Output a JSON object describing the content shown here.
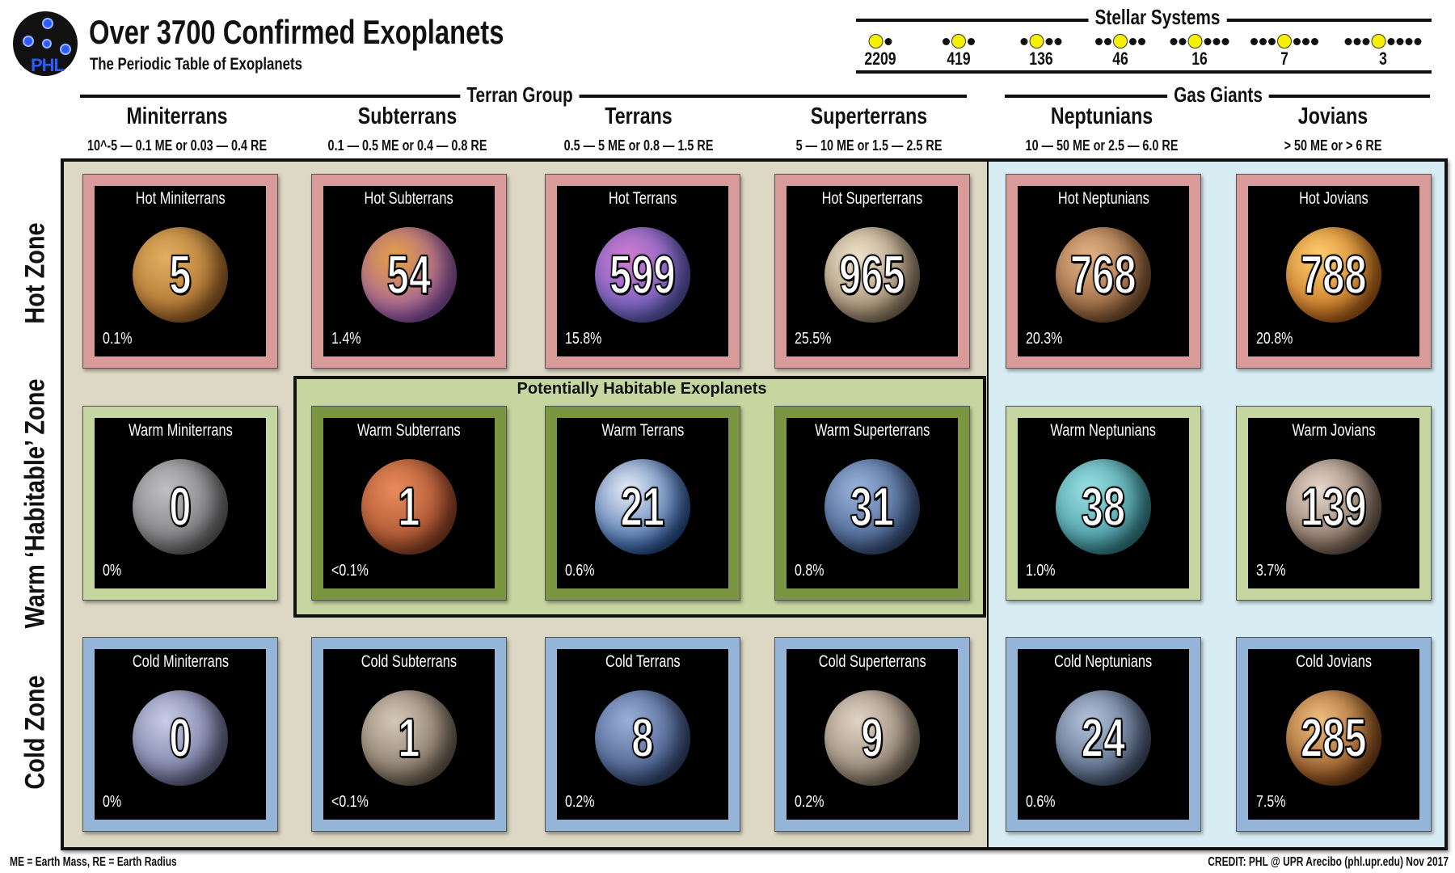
{
  "header": {
    "title": "Over 3700 Confirmed Exoplanets",
    "subtitle": "The Periodic Table of Exoplanets",
    "logo_text": "PHL"
  },
  "stellar_systems": {
    "label": "Stellar Systems",
    "items": [
      {
        "count": "2209",
        "before": 0,
        "after": 1
      },
      {
        "count": "419",
        "before": 1,
        "after": 1
      },
      {
        "count": "136",
        "before": 1,
        "after": 2
      },
      {
        "count": "46",
        "before": 2,
        "after": 2
      },
      {
        "count": "16",
        "before": 2,
        "after": 3
      },
      {
        "count": "7",
        "before": 3,
        "after": 3
      },
      {
        "count": "3",
        "before": 3,
        "after": 4
      }
    ]
  },
  "groups": {
    "terran": "Terran Group",
    "gas": "Gas Giants"
  },
  "categories": [
    {
      "name": "Miniterrans",
      "range_html": "10<sup>−5</sup> — 0.1 M<sub>E</sub> or 0.03 — 0.4 R<sub>E</sub>",
      "range": "10^-5 — 0.1 ME or 0.03 — 0.4 RE"
    },
    {
      "name": "Subterrans",
      "range": "0.1 — 0.5 ME or 0.4 — 0.8 RE"
    },
    {
      "name": "Terrans",
      "range": "0.5 — 5 ME or 0.8 — 1.5 RE"
    },
    {
      "name": "Superterrans",
      "range": "5 — 10 ME or 1.5 — 2.5 RE"
    },
    {
      "name": "Neptunians",
      "range": "10 — 50 ME or 2.5 — 6.0 RE"
    },
    {
      "name": "Jovians",
      "range": "> 50 ME or > 6 RE"
    }
  ],
  "zones": [
    "Hot Zone",
    "Warm ‘Habitable’ Zone",
    "Cold Zone"
  ],
  "habitable_label": "Potentially Habitable Exoplanets",
  "cells": [
    [
      {
        "name": "Hot Miniterrans",
        "count": "5",
        "pct": "0.1%",
        "planet": [
          "#e0b060",
          "#a86a2a"
        ]
      },
      {
        "name": "Hot Subterrans",
        "count": "54",
        "pct": "1.4%",
        "planet": [
          "#e6a040",
          "#9a5ab8"
        ]
      },
      {
        "name": "Hot Terrans",
        "count": "599",
        "pct": "15.8%",
        "planet": [
          "#d27ad0",
          "#6060c0"
        ]
      },
      {
        "name": "Hot Superterrans",
        "count": "965",
        "pct": "25.5%",
        "planet": [
          "#f0e4cc",
          "#9a8468"
        ]
      },
      {
        "name": "Hot Neptunians",
        "count": "768",
        "pct": "20.3%",
        "planet": [
          "#e6b488",
          "#8a5a34"
        ]
      },
      {
        "name": "Hot Jovians",
        "count": "788",
        "pct": "20.8%",
        "planet": [
          "#ffd070",
          "#c06818"
        ]
      }
    ],
    [
      {
        "name": "Warm Miniterrans",
        "count": "0",
        "pct": "0%",
        "planet": [
          "#c0c0c2",
          "#707072"
        ]
      },
      {
        "name": "Warm Subterrans",
        "count": "1",
        "pct": "<0.1%",
        "planet": [
          "#e88a5c",
          "#a04a28"
        ]
      },
      {
        "name": "Warm Terrans",
        "count": "21",
        "pct": "0.6%",
        "planet": [
          "#e8eef8",
          "#2c5aa0"
        ]
      },
      {
        "name": "Warm Superterrans",
        "count": "31",
        "pct": "0.8%",
        "planet": [
          "#9ab4dc",
          "#3a5484"
        ]
      },
      {
        "name": "Warm Neptunians",
        "count": "38",
        "pct": "1.0%",
        "planet": [
          "#9ae0e4",
          "#3a9098"
        ]
      },
      {
        "name": "Warm Jovians",
        "count": "139",
        "pct": "3.7%",
        "planet": [
          "#e8d8cc",
          "#7a6454"
        ]
      }
    ],
    [
      {
        "name": "Cold Miniterrans",
        "count": "0",
        "pct": "0%",
        "planet": [
          "#c8cce8",
          "#6a6e94"
        ]
      },
      {
        "name": "Cold Subterrans",
        "count": "1",
        "pct": "<0.1%",
        "planet": [
          "#d4c8b8",
          "#7a6a5a"
        ]
      },
      {
        "name": "Cold Terrans",
        "count": "8",
        "pct": "0.2%",
        "planet": [
          "#9ab0d8",
          "#3a5080"
        ]
      },
      {
        "name": "Cold Superterrans",
        "count": "9",
        "pct": "0.2%",
        "planet": [
          "#e0d4c4",
          "#8a7a68"
        ]
      },
      {
        "name": "Cold Neptunians",
        "count": "24",
        "pct": "0.6%",
        "planet": [
          "#b4c4dc",
          "#4a5a78"
        ]
      },
      {
        "name": "Cold Jovians",
        "count": "285",
        "pct": "7.5%",
        "planet": [
          "#f0c080",
          "#8a4a1a"
        ]
      }
    ]
  ],
  "frame_colors": {
    "hot": "#d99a9a",
    "warm": "#c5d6a0",
    "warm_habitable": "#7a9640",
    "cold": "#94b4d8",
    "terran_bg": "#dcd8c4",
    "gas_bg": "#d8ecf3"
  },
  "footer": {
    "legend": "ME = Earth Mass,  RE = Earth Radius",
    "credit": "CREDIT: PHL @ UPR Arecibo (phl.upr.edu) Nov 2017"
  }
}
